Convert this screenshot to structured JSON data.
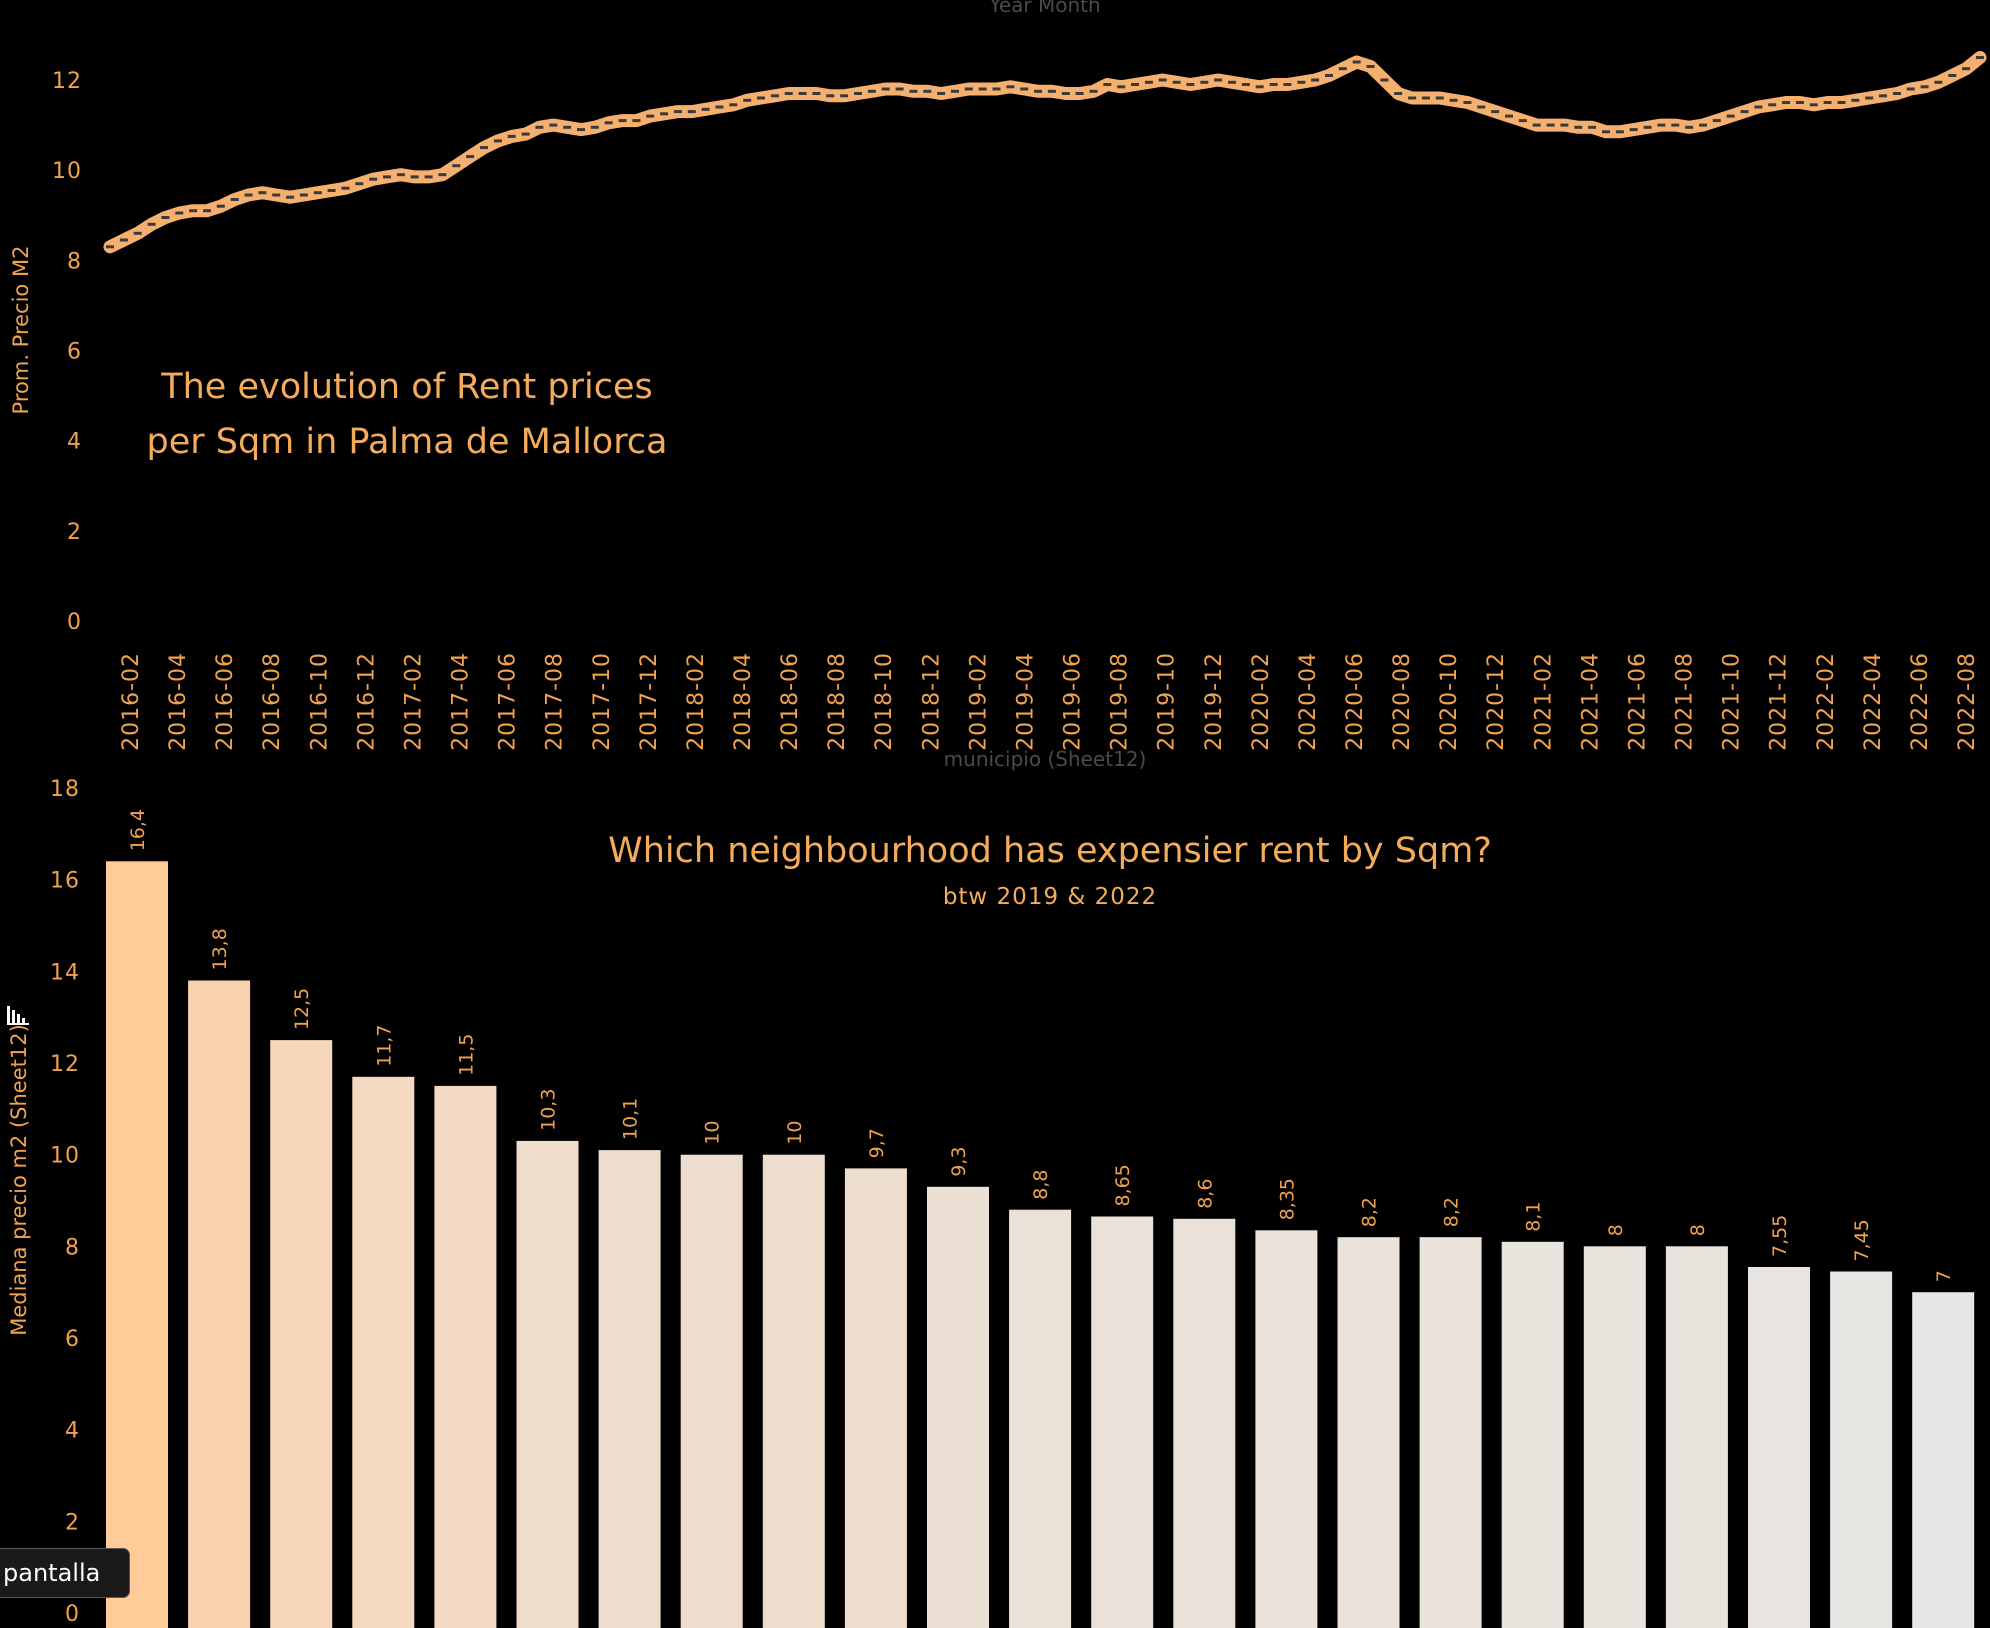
{
  "tooltip": {
    "fullscreen_label": "pantalla"
  },
  "icons": {
    "chart": "bar-chart-icon"
  },
  "chart_data": [
    {
      "type": "line",
      "title": "The evolution of Rent prices",
      "title_line2": "per Sqm in Palma de Mallorca",
      "xlabel": "Year Month",
      "ylabel": "Prom. Precio M2",
      "ylim": [
        0,
        13
      ],
      "yticks": [
        0,
        2,
        4,
        6,
        8,
        10,
        12
      ],
      "xtick_labels": [
        "2016-02",
        "2016-04",
        "2016-06",
        "2016-08",
        "2016-10",
        "2016-12",
        "2017-02",
        "2017-04",
        "2017-06",
        "2017-08",
        "2017-10",
        "2017-12",
        "2018-02",
        "2018-04",
        "2018-06",
        "2018-08",
        "2018-10",
        "2018-12",
        "2019-02",
        "2019-04",
        "2019-06",
        "2019-08",
        "2019-10",
        "2019-12",
        "2020-02",
        "2020-04",
        "2020-06",
        "2020-08",
        "2020-10",
        "2020-12",
        "2021-02",
        "2021-04",
        "2021-06",
        "2021-08",
        "2021-10",
        "2021-12",
        "2022-02",
        "2022-04",
        "2022-06",
        "2022-08"
      ],
      "series": [
        {
          "color": "#f5b070",
          "values": [
            8.3,
            8.45,
            8.6,
            8.8,
            8.95,
            9.05,
            9.1,
            9.1,
            9.2,
            9.35,
            9.45,
            9.5,
            9.45,
            9.4,
            9.45,
            9.5,
            9.55,
            9.6,
            9.7,
            9.8,
            9.85,
            9.9,
            9.85,
            9.85,
            9.9,
            10.1,
            10.3,
            10.5,
            10.65,
            10.75,
            10.8,
            10.95,
            11.0,
            10.95,
            10.9,
            10.95,
            11.05,
            11.1,
            11.1,
            11.2,
            11.25,
            11.3,
            11.3,
            11.35,
            11.4,
            11.45,
            11.55,
            11.6,
            11.65,
            11.7,
            11.7,
            11.7,
            11.65,
            11.65,
            11.7,
            11.75,
            11.8,
            11.8,
            11.75,
            11.75,
            11.7,
            11.75,
            11.8,
            11.8,
            11.8,
            11.85,
            11.8,
            11.75,
            11.75,
            11.7,
            11.7,
            11.75,
            11.9,
            11.85,
            11.9,
            11.95,
            12.0,
            11.95,
            11.9,
            11.95,
            12.0,
            11.95,
            11.9,
            11.85,
            11.9,
            11.9,
            11.95,
            12.0,
            12.1,
            12.25,
            12.4,
            12.3,
            12.0,
            11.7,
            11.6,
            11.6,
            11.6,
            11.55,
            11.5,
            11.4,
            11.3,
            11.2,
            11.1,
            11.0,
            11.0,
            11.0,
            10.95,
            10.95,
            10.85,
            10.85,
            10.9,
            10.95,
            11.0,
            11.0,
            10.95,
            11.0,
            11.1,
            11.2,
            11.3,
            11.4,
            11.45,
            11.5,
            11.5,
            11.45,
            11.5,
            11.5,
            11.55,
            11.6,
            11.65,
            11.7,
            11.8,
            11.85,
            11.95,
            12.1,
            12.25,
            12.5
          ]
        }
      ]
    },
    {
      "type": "bar",
      "title": "Which neighbourhood has expensier rent by Sqm?",
      "subtitle": "btw 2019 & 2022",
      "xlabel": "municipio (Sheet12)",
      "ylabel": "Mediana precio m2 (Sheet12)",
      "ylim": [
        0,
        18
      ],
      "yticks": [
        0,
        2,
        4,
        6,
        8,
        10,
        12,
        14,
        16,
        18
      ],
      "data_labels": [
        "16,4",
        "13,8",
        "12,5",
        "11,7",
        "11,5",
        "10,3",
        "10,1",
        "10",
        "10",
        "9,7",
        "9,3",
        "8,8",
        "8,65",
        "8,6",
        "8,35",
        "8,2",
        "8,2",
        "8,1",
        "8",
        "8",
        "7,55",
        "7,45",
        "7"
      ],
      "values": [
        16.4,
        13.8,
        12.5,
        11.7,
        11.5,
        10.3,
        10.1,
        10,
        10,
        9.7,
        9.3,
        8.8,
        8.65,
        8.6,
        8.35,
        8.2,
        8.2,
        8.1,
        8,
        8,
        7.55,
        7.45,
        7
      ],
      "color_high": "#ffcb99",
      "color_low": "#e6e6e6"
    }
  ]
}
